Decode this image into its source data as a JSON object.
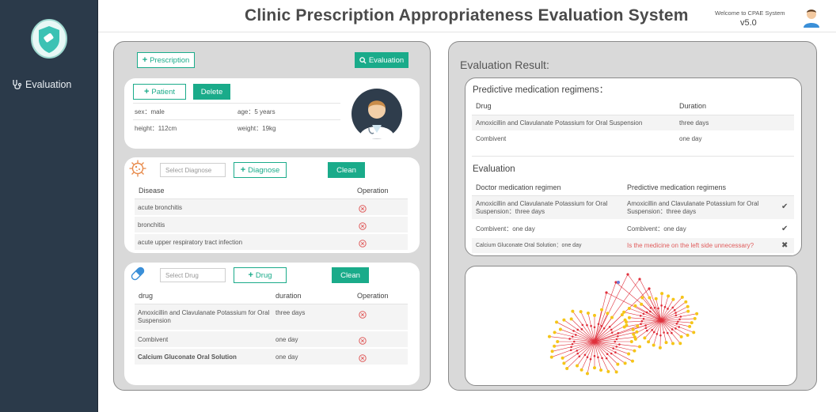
{
  "app": {
    "title": "Clinic Prescription Appropriateness Evaluation System",
    "welcome": "Welcome to CPAE System",
    "version": "v5.0"
  },
  "sidebar": {
    "nav_evaluation": "Evaluation"
  },
  "toolbar": {
    "prescription_label": "Prescription",
    "evaluation_label": "Evaluation"
  },
  "patient": {
    "add_label": "Patient",
    "delete_label": "Delete",
    "sex": "sex：male",
    "age": "age：5 years",
    "height": "height：112cm",
    "weight": "weight：19kg"
  },
  "diagnose": {
    "placeholder": "Select Diagnose",
    "add_label": "Diagnose",
    "clean_label": "Clean",
    "col_disease": "Disease",
    "col_operation": "Operation",
    "rows": [
      "acute bronchitis",
      "bronchitis",
      "acute upper respiratory tract infection"
    ]
  },
  "drugs": {
    "placeholder": "Select Drug",
    "add_label": "Drug",
    "clean_label": "Clean",
    "col_drug": "drug",
    "col_duration": "duration",
    "col_operation": "Operation",
    "rows": [
      {
        "drug": "Amoxicillin and Clavulanate Potassium for Oral Suspension",
        "duration": "three days"
      },
      {
        "drug": "Combivent",
        "duration": "one day"
      },
      {
        "drug": "Calcium Gluconate Oral Solution",
        "duration": "one day"
      }
    ]
  },
  "result": {
    "title": "Evaluation Result:",
    "predictive_title": "Predictive medication regimens：",
    "col_drug": "Drug",
    "col_duration": "Duration",
    "predictive_rows": [
      {
        "drug": "Amoxicillin and Clavulanate Potassium for Oral Suspension",
        "duration": "three days"
      },
      {
        "drug": "Combivent",
        "duration": "one day"
      }
    ],
    "evaluation_title": "Evaluation",
    "col_doctor": "Doctor medication regimen",
    "col_predictive": "Predictive medication regimens",
    "evaluation_rows": [
      {
        "doctor": "Amoxicillin and Clavulanate Potassium for Oral Suspension：three days",
        "predictive": "Amoxicillin and Clavulanate Potassium for Oral Suspension：three days",
        "mark": "✔"
      },
      {
        "doctor": "Combivent：one day",
        "predictive": "Combivent：one day",
        "mark": "✔"
      },
      {
        "doctor": "Calcium Gluconate Oral Solution：one day",
        "predictive": "Is the medicine on the left side unnecessary?",
        "mark": "✖"
      }
    ]
  },
  "colors": {
    "accent": "#1aab8a",
    "sidebar": "#2b3a4a",
    "panel": "#d9d9d9",
    "warning": "#e05c5c",
    "graph_edge": "#e0303c",
    "graph_node": "#f5c518"
  },
  "icons": [
    "shield-logo-icon",
    "stethoscope-icon",
    "user-avatar-icon",
    "search-icon",
    "virus-icon",
    "pill-icon",
    "doctor-avatar-icon",
    "delete-circle-icon",
    "check-icon",
    "cross-icon"
  ]
}
